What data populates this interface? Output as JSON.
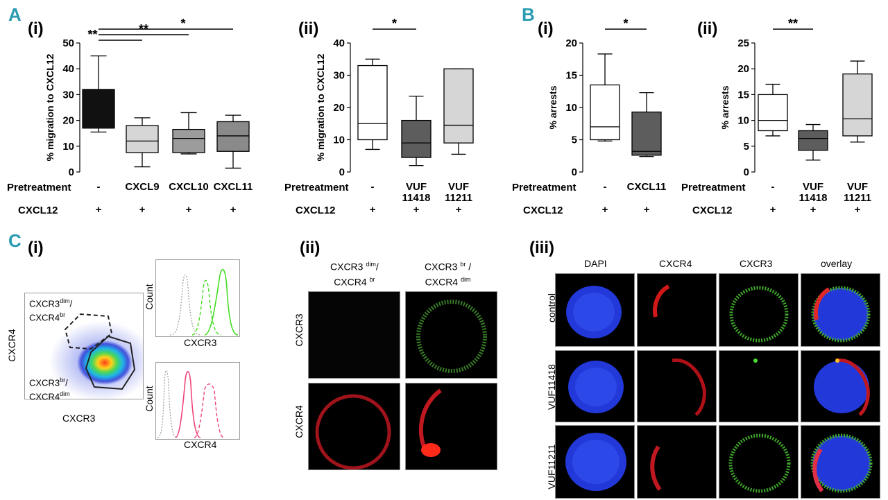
{
  "letters": {
    "A": "A",
    "B": "B",
    "C": "C"
  },
  "sub": {
    "a_i": "(i)",
    "a_ii": "(ii)",
    "b_i": "(i)",
    "b_ii": "(ii)",
    "c_i": "(i)",
    "c_ii": "(ii)",
    "c_iii": "(iii)"
  },
  "colors": {
    "accent": "#2a9bb0",
    "black_box": "#111111",
    "light_box": "#d6d6d6",
    "mid_box": "#9c9c9c",
    "dark_box": "#5d5d5d",
    "white_box": "#ffffff",
    "green": "#44dd22",
    "pink": "#ee4477"
  },
  "chart_data": [
    {
      "id": "A_i",
      "type": "box",
      "ylabel": "% migration to CXCL12",
      "ylim": [
        0,
        50
      ],
      "yticks": [
        0,
        10,
        20,
        30,
        40,
        50
      ],
      "boxes": [
        {
          "min": 15.5,
          "q1": 17,
          "median": 17,
          "q3": 32,
          "max": 45,
          "fill": "#111111"
        },
        {
          "min": 2,
          "q1": 7.5,
          "median": 12,
          "q3": 18,
          "max": 21,
          "fill": "#d6d6d6"
        },
        {
          "min": 7,
          "q1": 7.5,
          "median": 13,
          "q3": 16.5,
          "max": 23,
          "fill": "#9c9c9c"
        },
        {
          "min": 1.5,
          "q1": 8,
          "median": 14,
          "q3": 19.5,
          "max": 22,
          "fill": "#8a8a8a"
        }
      ],
      "brackets": [
        {
          "from": 0,
          "to": 3,
          "label": "*"
        },
        {
          "from": 0,
          "to": 2,
          "label": "**"
        },
        {
          "from": 0,
          "to": 1,
          "label": "**"
        }
      ],
      "table": {
        "row1_label": "Pretreatment",
        "row2_label": "CXCL12",
        "row1": [
          "-",
          "CXCL9",
          "CXCL10",
          "CXCL11"
        ],
        "row2": [
          "+",
          "+",
          "+",
          "+"
        ]
      }
    },
    {
      "id": "A_ii",
      "type": "box",
      "ylabel": "% migration to CXCL12",
      "ylim": [
        0,
        40
      ],
      "yticks": [
        0,
        10,
        20,
        30,
        40
      ],
      "boxes": [
        {
          "min": 7,
          "q1": 10,
          "median": 15,
          "q3": 33,
          "max": 35,
          "fill": "#ffffff"
        },
        {
          "min": 2,
          "q1": 4.5,
          "median": 9,
          "q3": 16,
          "max": 23.5,
          "fill": "#5d5d5d"
        },
        {
          "min": 5.5,
          "q1": 9,
          "median": 14.5,
          "q3": 32,
          "max": 32,
          "fill": "#d6d6d6"
        }
      ],
      "brackets": [
        {
          "from": 0,
          "to": 1,
          "label": "*"
        }
      ],
      "table": {
        "row1_label": "Pretreatment",
        "row2_label": "CXCL12",
        "row1": [
          "-",
          "VUF\n11418",
          "VUF\n11211"
        ],
        "row2": [
          "+",
          "+",
          "+"
        ]
      }
    },
    {
      "id": "B_i",
      "type": "box",
      "ylabel": "% arrests",
      "ylim": [
        0,
        20
      ],
      "yticks": [
        0,
        5,
        10,
        15,
        20
      ],
      "boxes": [
        {
          "min": 4.8,
          "q1": 5,
          "median": 7,
          "q3": 13.5,
          "max": 18.3,
          "fill": "#ffffff"
        },
        {
          "min": 2.4,
          "q1": 2.6,
          "median": 3.2,
          "q3": 9.3,
          "max": 12.3,
          "fill": "#5d5d5d"
        }
      ],
      "brackets": [
        {
          "from": 0,
          "to": 1,
          "label": "*"
        }
      ],
      "table": {
        "row1_label": "Pretreatment",
        "row2_label": "CXCL12",
        "row1": [
          "-",
          "CXCL11"
        ],
        "row2": [
          "+",
          "+"
        ]
      }
    },
    {
      "id": "B_ii",
      "type": "box",
      "ylabel": "% arrests",
      "ylim": [
        0,
        25
      ],
      "yticks": [
        0,
        5,
        10,
        15,
        20,
        25
      ],
      "boxes": [
        {
          "min": 7,
          "q1": 8,
          "median": 10,
          "q3": 15,
          "max": 17,
          "fill": "#ffffff"
        },
        {
          "min": 2.3,
          "q1": 4.2,
          "median": 6.5,
          "q3": 8,
          "max": 9.2,
          "fill": "#5d5d5d"
        },
        {
          "min": 5.8,
          "q1": 7,
          "median": 10.3,
          "q3": 19,
          "max": 21.5,
          "fill": "#d6d6d6"
        }
      ],
      "brackets": [
        {
          "from": 0,
          "to": 1,
          "label": "**"
        }
      ],
      "table": {
        "row1_label": "Pretreatment",
        "row2_label": "CXCL12",
        "row1": [
          "-",
          "VUF\n11418",
          "VUF\n11211"
        ],
        "row2": [
          "+",
          "+",
          "+"
        ]
      }
    }
  ],
  "flow": {
    "xlabel": "CXCR3",
    "ylabel": "CXCR4",
    "gate1_l1": "CXCR3",
    "gate1_s1": "dim",
    "gate1_l2": "CXCR4",
    "gate1_s2": "br",
    "gate2_l1": "CXCR3",
    "gate2_s1": "br",
    "gate2_l2": "CXCR4",
    "gate2_s2": "dim",
    "hist_top_ylabel": "Count",
    "hist_top_xlabel": "CXCR3",
    "hist_bot_ylabel": "Count",
    "hist_bot_xlabel": "CXCR4"
  },
  "c_ii": {
    "col1_l1": "CXCR3",
    "col1_s1": "dim",
    "col1_l2": "CXCR4",
    "col1_s2": "br",
    "col2_l1": "CXCR3",
    "col2_s1": "br",
    "col2_l2": "CXCR4",
    "col2_s2": "dim",
    "row1": "CXCR3",
    "row2": "CXCR4"
  },
  "c_iii": {
    "cols": [
      "DAPI",
      "CXCR4",
      "CXCR3",
      "overlay"
    ],
    "rows": [
      "control",
      "VUF11418",
      "VUF11211"
    ]
  }
}
